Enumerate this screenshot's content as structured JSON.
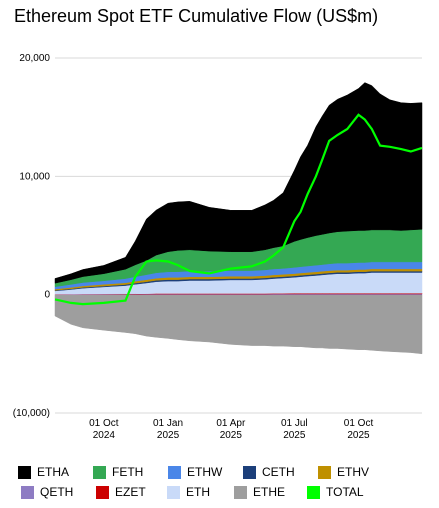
{
  "chart_data": {
    "type": "area",
    "title": "Ethereum Spot ETF Cumulative Flow (US$m)",
    "xlabel": "",
    "ylabel": "",
    "ylim": [
      -10000,
      20000
    ],
    "y_ticks": [
      {
        "value": 20000,
        "label": "20,000"
      },
      {
        "value": 10000,
        "label": "10,000"
      },
      {
        "value": 0,
        "label": "0"
      },
      {
        "value": -10000,
        "label": "(10,000)"
      }
    ],
    "x_ticks": [
      {
        "date": "2024-10-01",
        "label": [
          "01 Oct",
          "2024"
        ]
      },
      {
        "date": "2025-01-01",
        "label": [
          "01 Jan",
          "2025"
        ]
      },
      {
        "date": "2025-04-01",
        "label": [
          "01 Apr",
          "2025"
        ]
      },
      {
        "date": "2025-07-01",
        "label": [
          "01 Jul",
          "2025"
        ]
      },
      {
        "date": "2025-10-01",
        "label": [
          "01 Oct",
          "2025"
        ]
      }
    ],
    "grid": true,
    "legend_position": "bottom",
    "x": [
      "2024-07-23",
      "2024-08-15",
      "2024-09-01",
      "2024-10-01",
      "2024-11-01",
      "2024-11-15",
      "2024-12-01",
      "2024-12-15",
      "2025-01-01",
      "2025-01-15",
      "2025-02-01",
      "2025-03-01",
      "2025-04-01",
      "2025-05-01",
      "2025-05-20",
      "2025-06-01",
      "2025-06-15",
      "2025-07-01",
      "2025-07-10",
      "2025-07-20",
      "2025-08-01",
      "2025-08-10",
      "2025-08-20",
      "2025-09-01",
      "2025-09-15",
      "2025-10-01",
      "2025-10-10",
      "2025-10-20",
      "2025-11-01",
      "2025-11-15",
      "2025-12-01",
      "2025-12-15",
      "2025-12-31"
    ],
    "series": [
      {
        "name": "ETHE",
        "color": "#9e9e9e",
        "values": [
          -1800,
          -2500,
          -2800,
          -3000,
          -3200,
          -3300,
          -3500,
          -3600,
          -3700,
          -3800,
          -3900,
          -4000,
          -4200,
          -4300,
          -4300,
          -4350,
          -4350,
          -4400,
          -4400,
          -4450,
          -4500,
          -4500,
          -4550,
          -4550,
          -4600,
          -4650,
          -4650,
          -4700,
          -4750,
          -4800,
          -4850,
          -4900,
          -5000
        ]
      },
      {
        "name": "QETH",
        "color": "#8e7cc3",
        "values": [
          10,
          20,
          25,
          30,
          35,
          40,
          45,
          50,
          50,
          50,
          50,
          50,
          50,
          50,
          50,
          55,
          55,
          60,
          60,
          60,
          60,
          60,
          60,
          60,
          60,
          60,
          60,
          60,
          60,
          60,
          60,
          60,
          60
        ]
      },
      {
        "name": "EZET",
        "color": "#cc0000",
        "values": [
          10,
          15,
          20,
          25,
          30,
          35,
          40,
          45,
          50,
          50,
          50,
          50,
          50,
          50,
          50,
          55,
          55,
          60,
          60,
          60,
          60,
          60,
          60,
          60,
          60,
          60,
          60,
          60,
          60,
          60,
          60,
          60,
          60
        ]
      },
      {
        "name": "ETH",
        "color": "#c9daf8",
        "values": [
          300,
          400,
          500,
          600,
          700,
          800,
          900,
          1000,
          1050,
          1050,
          1100,
          1100,
          1150,
          1150,
          1200,
          1250,
          1300,
          1350,
          1400,
          1450,
          1500,
          1550,
          1600,
          1650,
          1650,
          1700,
          1700,
          1750,
          1750,
          1750,
          1750,
          1750,
          1750
        ]
      },
      {
        "name": "CETH",
        "color": "#1c3f7a",
        "values": [
          50,
          60,
          70,
          80,
          90,
          100,
          110,
          120,
          120,
          120,
          120,
          120,
          120,
          120,
          120,
          120,
          120,
          120,
          120,
          120,
          120,
          120,
          120,
          120,
          120,
          120,
          120,
          120,
          120,
          120,
          120,
          120,
          120
        ]
      },
      {
        "name": "ETHV",
        "color": "#bf9000",
        "values": [
          100,
          120,
          130,
          140,
          150,
          160,
          170,
          180,
          190,
          190,
          190,
          190,
          190,
          190,
          190,
          190,
          190,
          190,
          190,
          190,
          190,
          190,
          190,
          190,
          190,
          190,
          190,
          190,
          190,
          190,
          190,
          190,
          190
        ]
      },
      {
        "name": "ETHW",
        "color": "#4a86e8",
        "values": [
          200,
          250,
          280,
          300,
          350,
          380,
          420,
          450,
          470,
          480,
          480,
          470,
          470,
          470,
          480,
          500,
          500,
          520,
          530,
          540,
          560,
          560,
          580,
          590,
          590,
          590,
          590,
          590,
          590,
          590,
          590,
          590,
          590
        ]
      },
      {
        "name": "FETH",
        "color": "#34a853",
        "values": [
          300,
          400,
          500,
          600,
          800,
          1000,
          1200,
          1500,
          1700,
          1800,
          1800,
          1700,
          1600,
          1600,
          1700,
          1800,
          1900,
          2200,
          2300,
          2400,
          2500,
          2550,
          2600,
          2650,
          2700,
          2700,
          2700,
          2700,
          2700,
          2700,
          2650,
          2700,
          2750
        ]
      },
      {
        "name": "ETHA",
        "color": "#000000",
        "values": [
          400,
          500,
          600,
          700,
          1000,
          2000,
          3500,
          3800,
          4100,
          4100,
          4100,
          3700,
          3500,
          3500,
          3800,
          4000,
          4500,
          6000,
          7000,
          7800,
          9200,
          10000,
          10800,
          11200,
          11500,
          12000,
          12500,
          12200,
          11500,
          11000,
          10800,
          10700,
          10700
        ]
      }
    ],
    "total": {
      "name": "TOTAL",
      "color": "#00ff00",
      "values": [
        -400,
        -700,
        -800,
        -700,
        -500,
        1500,
        2800,
        2900,
        2800,
        2500,
        2000,
        1800,
        2200,
        2400,
        2800,
        3300,
        4000,
        6200,
        7000,
        8500,
        10000,
        11400,
        13000,
        13500,
        14000,
        15200,
        14800,
        14000,
        12600,
        12500,
        12300,
        12100,
        12400
      ]
    },
    "legend": [
      "ETHA",
      "FETH",
      "ETHW",
      "CETH",
      "ETHV",
      "QETH",
      "EZET",
      "ETH",
      "ETHE",
      "TOTAL"
    ]
  }
}
